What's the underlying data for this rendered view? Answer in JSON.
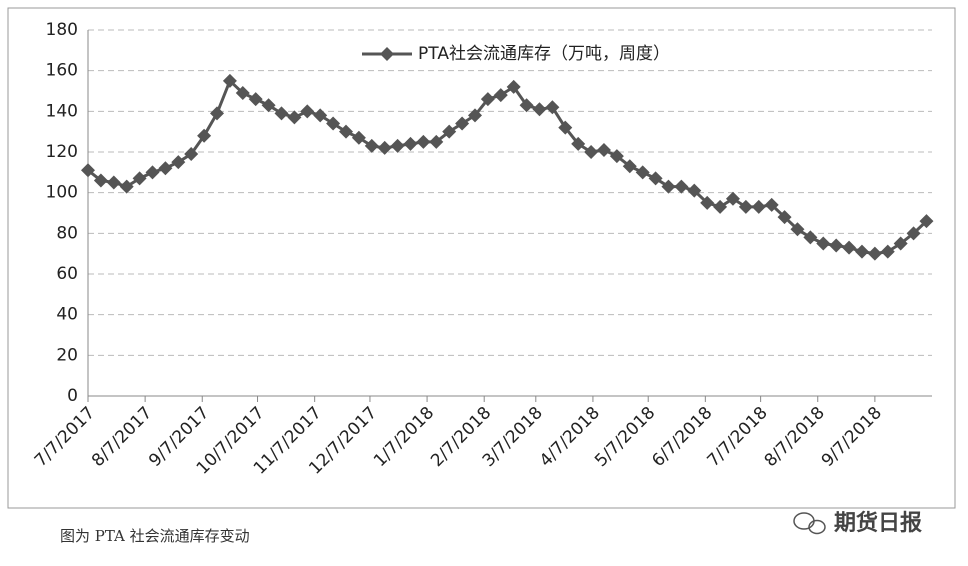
{
  "chart_data": {
    "type": "line",
    "x": [
      "7/7/2017",
      "7/14/2017",
      "7/21/2017",
      "7/28/2017",
      "8/4/2017",
      "8/11/2017",
      "8/18/2017",
      "8/25/2017",
      "9/1/2017",
      "9/8/2017",
      "9/15/2017",
      "9/22/2017",
      "9/29/2017",
      "10/6/2017",
      "10/13/2017",
      "10/20/2017",
      "10/27/2017",
      "11/3/2017",
      "11/10/2017",
      "11/17/2017",
      "11/24/2017",
      "12/1/2017",
      "12/8/2017",
      "12/15/2017",
      "12/22/2017",
      "12/29/2017",
      "1/5/2018",
      "1/12/2018",
      "1/19/2018",
      "1/26/2018",
      "2/2/2018",
      "2/9/2018",
      "2/16/2018",
      "2/23/2018",
      "3/2/2018",
      "3/9/2018",
      "3/16/2018",
      "3/23/2018",
      "3/30/2018",
      "4/6/2018",
      "4/13/2018",
      "4/20/2018",
      "4/27/2018",
      "5/4/2018",
      "5/11/2018",
      "5/18/2018",
      "5/25/2018",
      "6/1/2018",
      "6/8/2018",
      "6/15/2018",
      "6/22/2018",
      "6/29/2018",
      "7/6/2018",
      "7/13/2018",
      "7/20/2018",
      "7/27/2018",
      "8/3/2018",
      "8/10/2018",
      "8/17/2018",
      "8/24/2018",
      "8/31/2018",
      "9/7/2018",
      "9/14/2018",
      "9/21/2018",
      "9/28/2018",
      "10/5/2018"
    ],
    "series": [
      {
        "name": "PTA社会流通库存（万吨，周度）",
        "color": "#555555",
        "values": [
          111,
          106,
          105,
          103,
          107,
          110,
          112,
          115,
          119,
          128,
          139,
          155,
          149,
          146,
          143,
          139,
          137,
          140,
          138,
          134,
          130,
          127,
          123,
          122,
          123,
          124,
          125,
          125,
          130,
          134,
          138,
          146,
          148,
          152,
          143,
          141,
          142,
          132,
          124,
          120,
          121,
          118,
          113,
          110,
          107,
          103,
          103,
          101,
          95,
          93,
          97,
          93,
          93,
          94,
          88,
          82,
          78,
          75,
          74,
          73,
          71,
          70,
          71,
          75,
          80,
          86
        ]
      }
    ],
    "xlim": [
      "7/7/2017",
      "10/8/2018"
    ],
    "xticks": [
      "7/7/2017",
      "8/7/2017",
      "9/7/2017",
      "10/7/2017",
      "11/7/2017",
      "12/7/2017",
      "1/7/2018",
      "2/7/2018",
      "3/7/2018",
      "4/7/2018",
      "5/7/2018",
      "6/7/2018",
      "7/7/2018",
      "8/7/2018",
      "9/7/2018"
    ],
    "ylim": [
      0,
      180
    ],
    "yticks": [
      0,
      20,
      40,
      60,
      80,
      100,
      120,
      140,
      160,
      180
    ],
    "grid": true
  },
  "caption": "图为 PTA 社会流通库存变动",
  "watermark": "期货日报"
}
